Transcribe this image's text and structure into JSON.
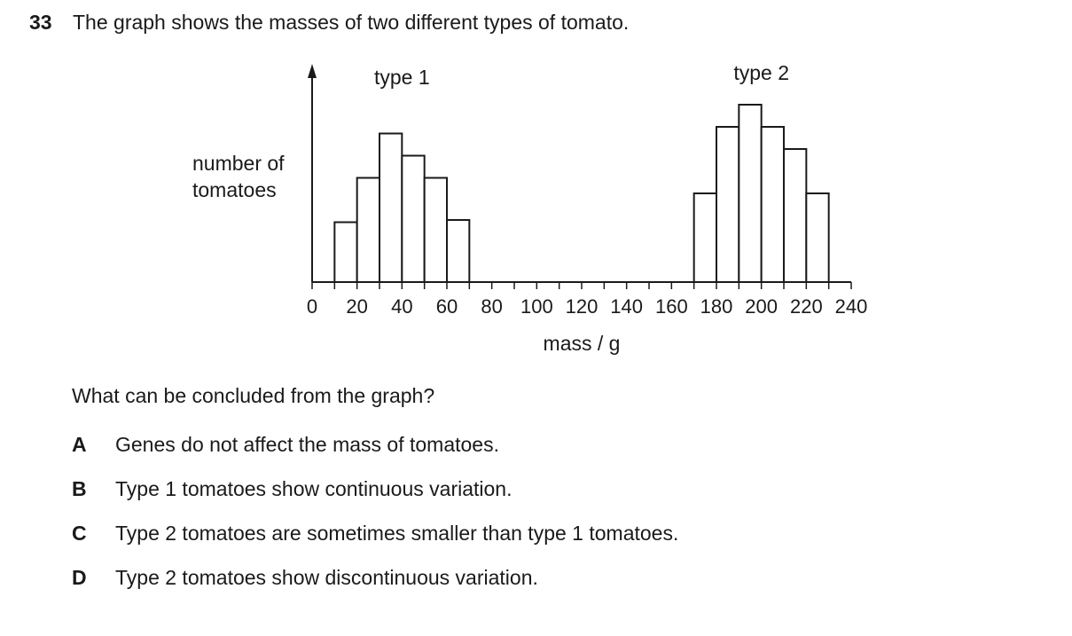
{
  "question": {
    "number": "33",
    "stem": "The graph shows the masses of two different types of tomato."
  },
  "chart_data": {
    "type": "bar",
    "title": "",
    "xlabel": "mass / g",
    "ylabel_lines": [
      "number of",
      "tomatoes"
    ],
    "xlim": [
      0,
      240
    ],
    "x_ticks": [
      0,
      20,
      40,
      60,
      80,
      100,
      120,
      140,
      160,
      180,
      200,
      220,
      240
    ],
    "minor_tick_step": 10,
    "bin_width": 10,
    "y_axis_numbered": false,
    "grid": false,
    "series": [
      {
        "name": "type 1",
        "bins_start": [
          10,
          20,
          30,
          40,
          50,
          60
        ],
        "values": [
          27,
          47,
          67,
          57,
          47,
          28
        ]
      },
      {
        "name": "type 2",
        "bins_start": [
          170,
          180,
          190,
          200,
          210,
          220
        ],
        "values": [
          40,
          70,
          80,
          70,
          60,
          40
        ]
      }
    ],
    "ylim": [
      0,
      100
    ]
  },
  "prompt": "What can be concluded from the graph?",
  "options": [
    {
      "letter": "A",
      "text": "Genes do not affect the mass of tomatoes."
    },
    {
      "letter": "B",
      "text": "Type 1 tomatoes show continuous variation."
    },
    {
      "letter": "C",
      "text": "Type 2 tomatoes are sometimes smaller than type 1 tomatoes."
    },
    {
      "letter": "D",
      "text": "Type 2 tomatoes show discontinuous variation."
    }
  ]
}
